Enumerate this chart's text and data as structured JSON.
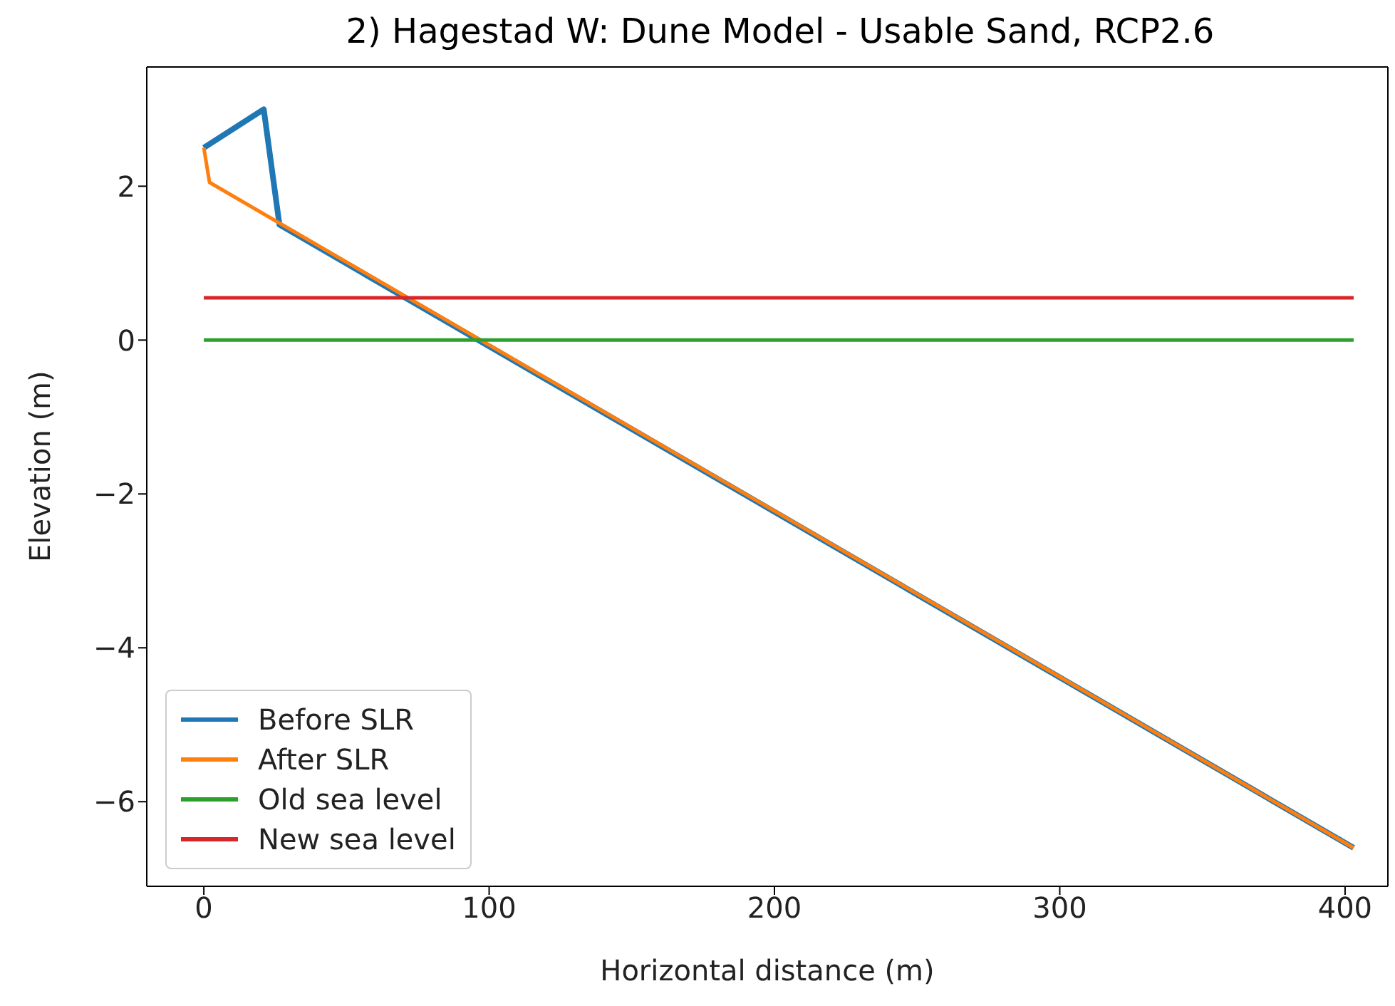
{
  "chart_data": {
    "type": "line",
    "title": "2) Hagestad W: Dune Model - Usable Sand, RCP2.6",
    "xlabel": "Horizontal distance (m)",
    "ylabel": "Elevation (m)",
    "xlim": [
      -20,
      415
    ],
    "xticks": [
      0,
      100,
      200,
      300,
      400
    ],
    "ylim": [
      -7.1,
      3.55
    ],
    "yticks": [
      -6,
      -4,
      -2,
      0,
      2
    ],
    "grid": false,
    "legend": "bottom left",
    "marker": "none",
    "line_style": "solid",
    "series": [
      {
        "name": "Before SLR",
        "color": "#1f77b4",
        "x": [
          0,
          21,
          26.5,
          403
        ],
        "values": [
          2.5,
          3.0,
          1.5,
          -6.6
        ]
      },
      {
        "name": "After SLR",
        "color": "#ff7f0e",
        "x": [
          0,
          2,
          403
        ],
        "values": [
          2.5,
          2.05,
          -6.6
        ]
      },
      {
        "name": "Old sea level",
        "color": "#2ca02c",
        "x": [
          0,
          403
        ],
        "values": [
          0,
          0
        ]
      },
      {
        "name": "New sea level",
        "color": "#d62728",
        "x": [
          0,
          403
        ],
        "values": [
          0.55,
          0.55
        ]
      }
    ]
  }
}
